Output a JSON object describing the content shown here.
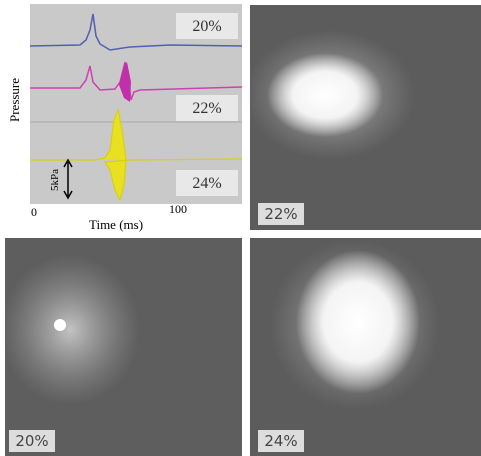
{
  "chart_panel": {
    "y_label": "Pressure",
    "x_label": "Time (ms)",
    "x_ticks": [
      "0",
      "100"
    ],
    "scale_label": "5kPa",
    "traces": [
      {
        "label": "20%"
      },
      {
        "label": "22%"
      },
      {
        "label": "24%"
      }
    ]
  },
  "photos": [
    {
      "label": "22%"
    },
    {
      "label": "20%"
    },
    {
      "label": "24%"
    }
  ]
}
